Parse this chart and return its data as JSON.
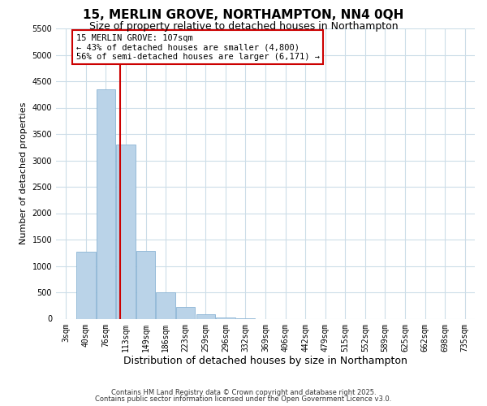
{
  "title": "15, MERLIN GROVE, NORTHAMPTON, NN4 0QH",
  "subtitle": "Size of property relative to detached houses in Northampton",
  "xlabel": "Distribution of detached houses by size in Northampton",
  "ylabel": "Number of detached properties",
  "bar_labels": [
    "3sqm",
    "40sqm",
    "76sqm",
    "113sqm",
    "149sqm",
    "186sqm",
    "223sqm",
    "259sqm",
    "296sqm",
    "332sqm",
    "369sqm",
    "406sqm",
    "442sqm",
    "479sqm",
    "515sqm",
    "552sqm",
    "589sqm",
    "625sqm",
    "662sqm",
    "698sqm",
    "735sqm"
  ],
  "bar_values": [
    0,
    1270,
    4350,
    3300,
    1280,
    500,
    230,
    80,
    30,
    5,
    0,
    0,
    0,
    0,
    0,
    0,
    0,
    0,
    0,
    0,
    0
  ],
  "bar_color": "#bad3e8",
  "bar_edge_color": "#8ab4d4",
  "vline_x_idx": 2.72,
  "vline_color": "#cc0000",
  "ylim": [
    0,
    5500
  ],
  "yticks": [
    0,
    500,
    1000,
    1500,
    2000,
    2500,
    3000,
    3500,
    4000,
    4500,
    5000,
    5500
  ],
  "annotation_line1": "15 MERLIN GROVE: 107sqm",
  "annotation_line2": "← 43% of detached houses are smaller (4,800)",
  "annotation_line3": "56% of semi-detached houses are larger (6,171) →",
  "annotation_box_color": "#ffffff",
  "annotation_box_edge_color": "#cc0000",
  "footnote1": "Contains HM Land Registry data © Crown copyright and database right 2025.",
  "footnote2": "Contains public sector information licensed under the Open Government Licence v3.0.",
  "bg_color": "#ffffff",
  "grid_color": "#ccdde8",
  "title_fontsize": 11,
  "subtitle_fontsize": 9,
  "ylabel_fontsize": 8,
  "xlabel_fontsize": 9,
  "tick_fontsize": 7,
  "annot_fontsize": 7.5,
  "footnote_fontsize": 6
}
